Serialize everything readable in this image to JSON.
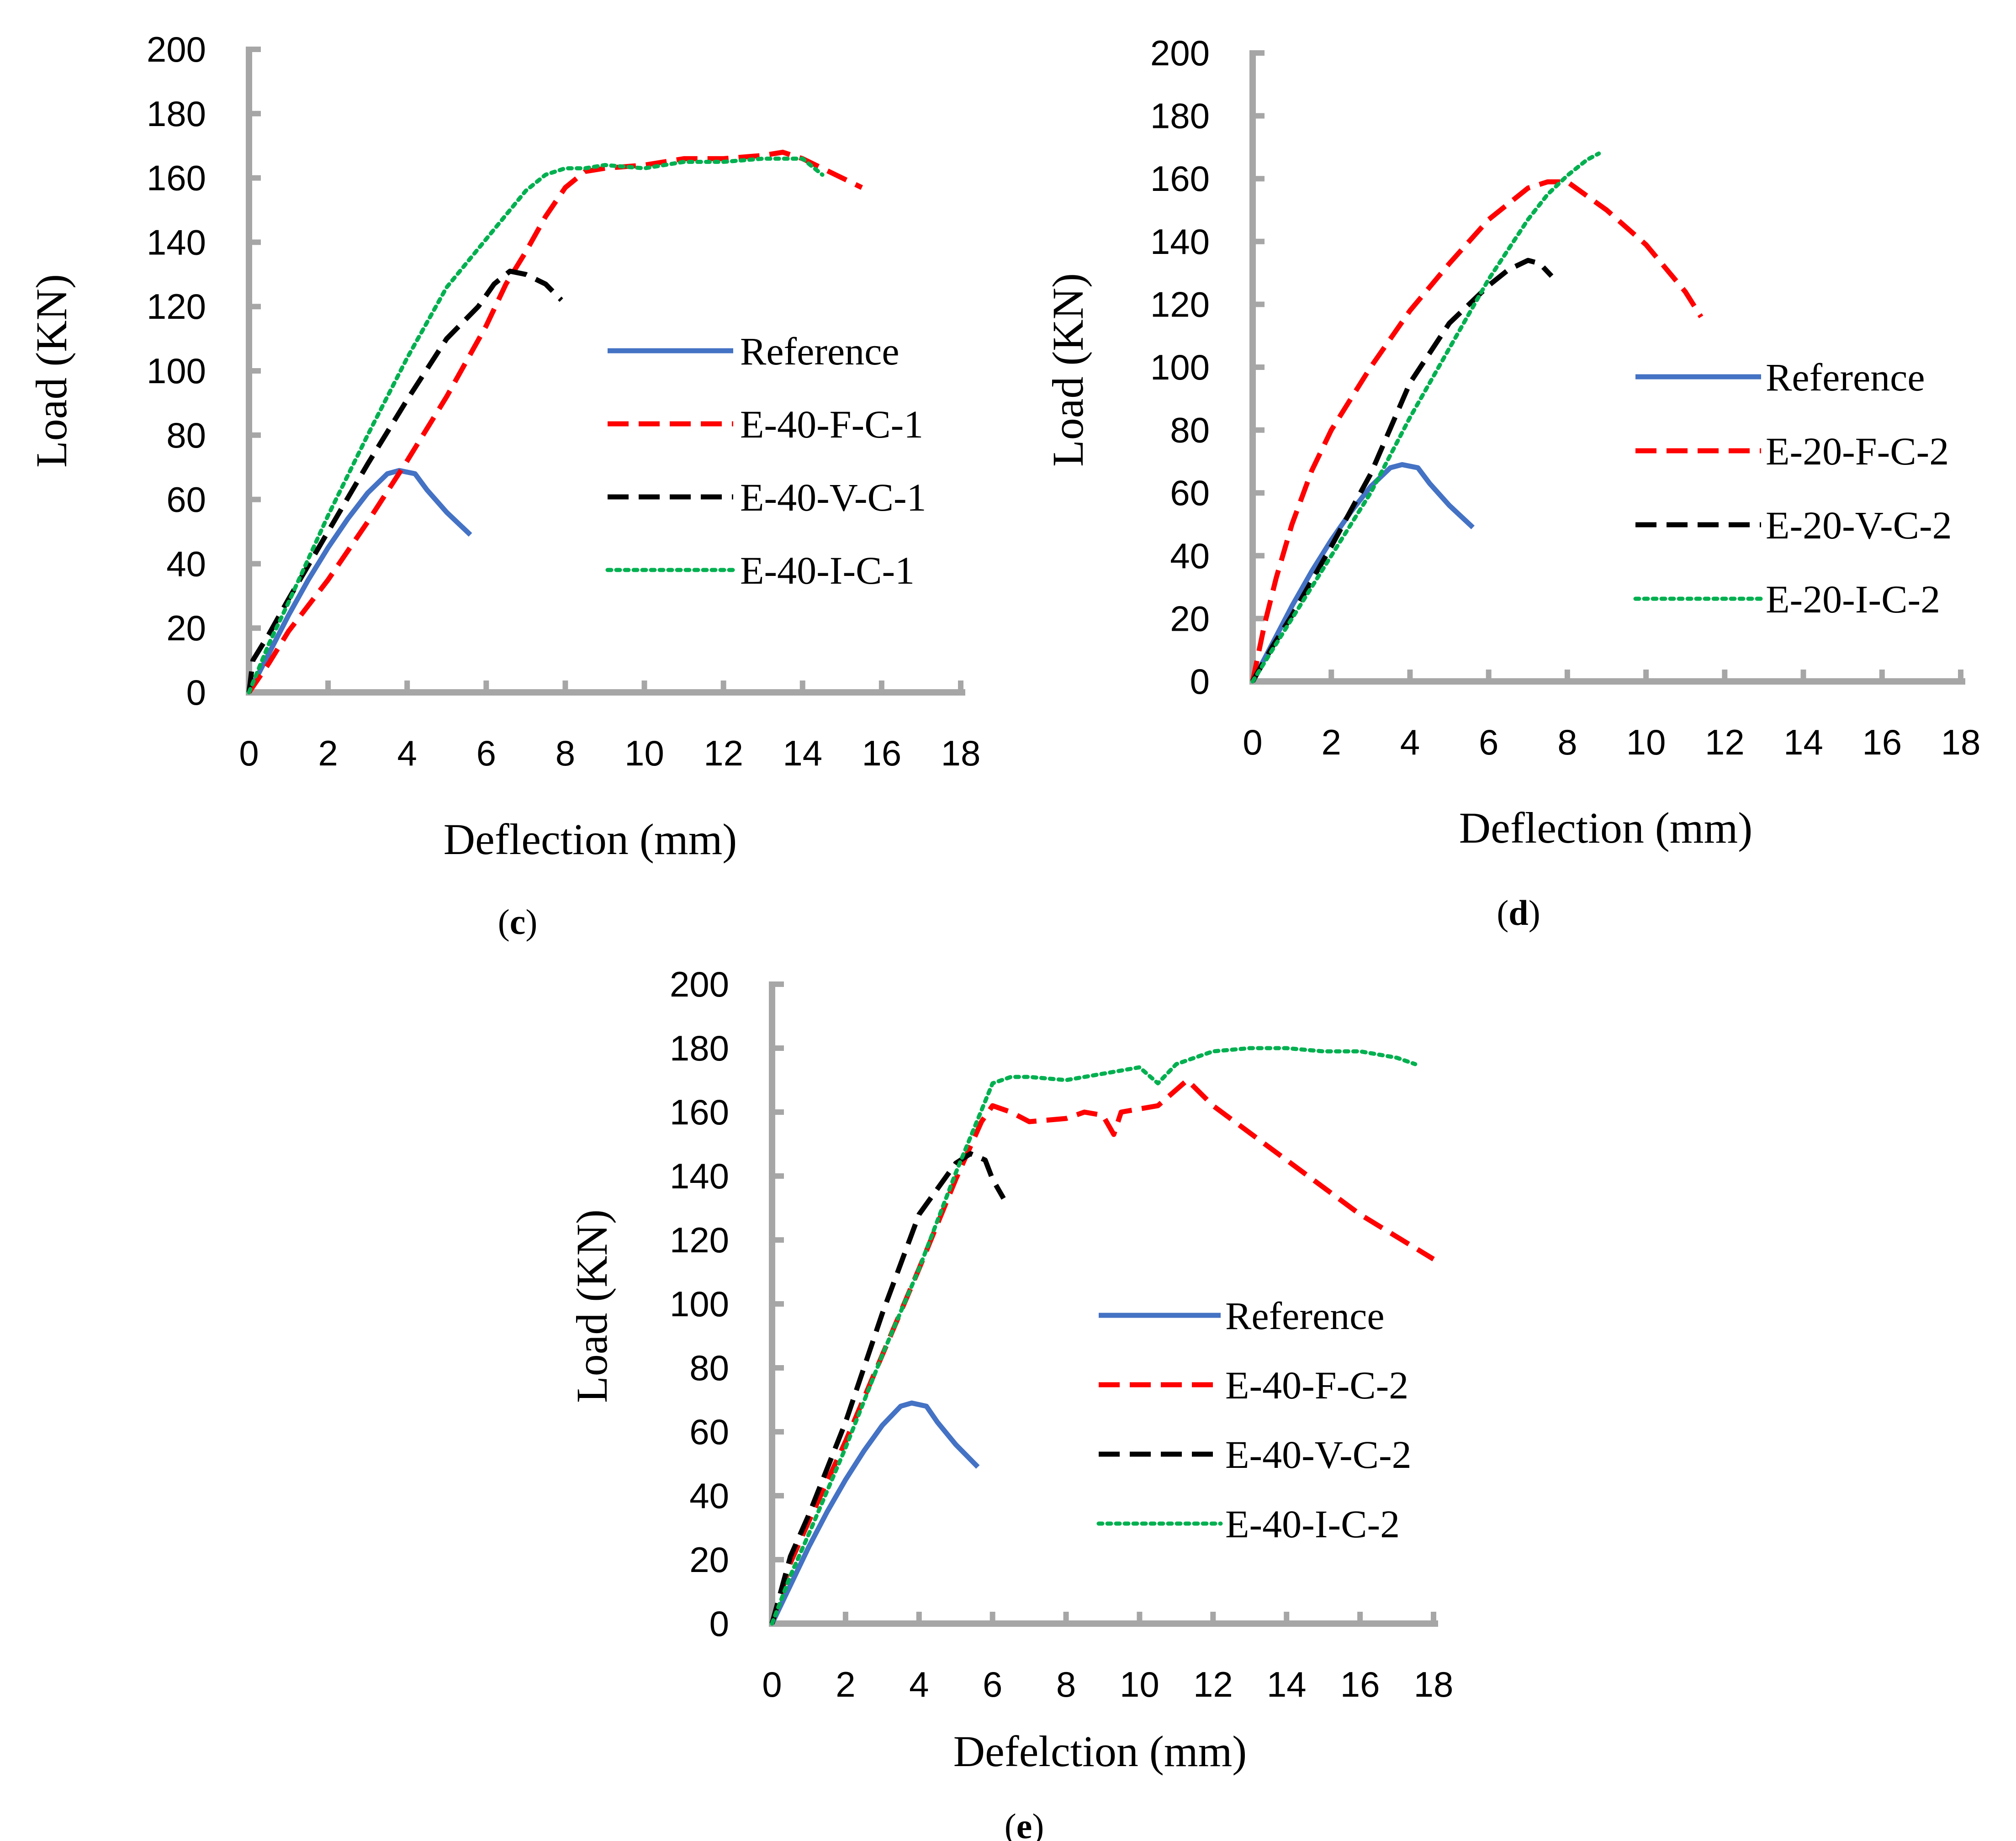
{
  "chart_data": [
    {
      "panel": "c",
      "type": "line",
      "xlabel": "Deflection (mm)",
      "ylabel": "Load (KN)",
      "xlim": [
        0,
        18
      ],
      "ylim": [
        0,
        200
      ],
      "xticks": [
        "0",
        "2",
        "4",
        "6",
        "8",
        "10",
        "12",
        "14",
        "16",
        "18"
      ],
      "yticks": [
        "0",
        "20",
        "40",
        "60",
        "80",
        "100",
        "120",
        "140",
        "160",
        "180",
        "200"
      ],
      "grid": false,
      "legend_position": "right",
      "series": [
        {
          "name": "Reference",
          "color": "#4472C4",
          "style": "solid",
          "x": [
            0,
            0.5,
            1.0,
            1.5,
            2.0,
            2.5,
            3.0,
            3.5,
            3.8,
            4.2,
            4.5,
            5.0,
            5.6
          ],
          "y": [
            0,
            12,
            24,
            35,
            45,
            54,
            62,
            68,
            69,
            68,
            63,
            56,
            49
          ]
        },
        {
          "name": "E-40-F-C-1",
          "color": "#FF0000",
          "style": "dashed",
          "x": [
            0,
            0.5,
            1.0,
            1.5,
            2.0,
            3.0,
            4.0,
            5.0,
            6.0,
            6.5,
            7.0,
            7.5,
            8.0,
            8.5,
            9.0,
            10.0,
            11.0,
            12.0,
            13.0,
            13.5,
            14.0,
            14.5,
            15.0,
            15.5
          ],
          "y": [
            0,
            9,
            19,
            27,
            35,
            53,
            72,
            92,
            114,
            127,
            137,
            148,
            157,
            162,
            163,
            164,
            166,
            166,
            167,
            168,
            166,
            163,
            160,
            157
          ]
        },
        {
          "name": "E-40-V-C-1",
          "color": "#000000",
          "style": "dashed",
          "x": [
            0,
            0.1,
            0.5,
            1.0,
            2.0,
            3.0,
            4.0,
            5.0,
            5.8,
            6.2,
            6.6,
            7.0,
            7.5,
            7.9
          ],
          "y": [
            0,
            10,
            18,
            29,
            50,
            71,
            91,
            110,
            120,
            127,
            131,
            130,
            127,
            122
          ]
        },
        {
          "name": "E-40-I-C-1",
          "color": "#00B050",
          "style": "dotted",
          "x": [
            0,
            0.5,
            1.0,
            2.0,
            3.0,
            4.0,
            5.0,
            6.0,
            7.0,
            7.5,
            8.0,
            8.5,
            9.0,
            10.0,
            11.0,
            12.0,
            13.0,
            14.0,
            14.5
          ],
          "y": [
            0,
            15,
            28,
            55,
            80,
            104,
            126,
            141,
            156,
            161,
            163,
            163,
            164,
            163,
            165,
            165,
            166,
            166,
            161
          ]
        }
      ]
    },
    {
      "panel": "d",
      "type": "line",
      "xlabel": "Deflection (mm)",
      "ylabel": "Load (KN)",
      "xlim": [
        0,
        18
      ],
      "ylim": [
        0,
        200
      ],
      "xticks": [
        "0",
        "2",
        "4",
        "6",
        "8",
        "10",
        "12",
        "14",
        "16",
        "18"
      ],
      "yticks": [
        "0",
        "20",
        "40",
        "60",
        "80",
        "100",
        "120",
        "140",
        "160",
        "180",
        "200"
      ],
      "grid": false,
      "legend_position": "right",
      "series": [
        {
          "name": "Reference",
          "color": "#4472C4",
          "style": "solid",
          "x": [
            0,
            0.5,
            1.0,
            1.5,
            2.0,
            2.5,
            3.0,
            3.5,
            3.8,
            4.2,
            4.5,
            5.0,
            5.6
          ],
          "y": [
            0,
            12,
            24,
            35,
            45,
            54,
            62,
            68,
            69,
            68,
            63,
            56,
            49
          ]
        },
        {
          "name": "E-20-F-C-2",
          "color": "#FF0000",
          "style": "dashed",
          "x": [
            0,
            0.3,
            0.6,
            1.0,
            1.5,
            2.0,
            3.0,
            4.0,
            5.0,
            6.0,
            7.0,
            7.5,
            8.0,
            9.0,
            10.0,
            11.0,
            11.4
          ],
          "y": [
            0,
            18,
            33,
            50,
            67,
            80,
            100,
            118,
            133,
            147,
            157,
            159,
            159,
            150,
            139,
            124,
            116
          ]
        },
        {
          "name": "E-20-V-C-2",
          "color": "#000000",
          "style": "dashed",
          "x": [
            0,
            0.5,
            1.0,
            2.0,
            3.0,
            4.0,
            5.0,
            6.0,
            6.5,
            7.0,
            7.3,
            7.6
          ],
          "y": [
            0,
            11,
            21,
            43,
            66,
            95,
            114,
            126,
            131,
            134,
            133,
            129
          ]
        },
        {
          "name": "E-20-I-C-2",
          "color": "#00B050",
          "style": "dotted",
          "x": [
            0,
            0.5,
            1.0,
            2.0,
            3.0,
            4.0,
            5.0,
            6.0,
            7.0,
            7.5,
            8.0,
            8.5,
            8.8
          ],
          "y": [
            0,
            10,
            20,
            40,
            60,
            84,
            106,
            128,
            147,
            155,
            161,
            166,
            168
          ]
        }
      ]
    },
    {
      "panel": "e",
      "type": "line",
      "xlabel": "Defelction (mm)",
      "ylabel": "Load (KN)",
      "xlim": [
        0,
        18
      ],
      "ylim": [
        0,
        200
      ],
      "xticks": [
        "0",
        "2",
        "4",
        "6",
        "8",
        "10",
        "12",
        "14",
        "16",
        "18"
      ],
      "yticks": [
        "0",
        "20",
        "40",
        "60",
        "80",
        "100",
        "120",
        "140",
        "160",
        "180",
        "200"
      ],
      "grid": false,
      "legend_position": "right",
      "series": [
        {
          "name": "Reference",
          "color": "#4472C4",
          "style": "solid",
          "x": [
            0,
            0.5,
            1.0,
            1.5,
            2.0,
            2.5,
            3.0,
            3.5,
            3.8,
            4.2,
            4.5,
            5.0,
            5.6
          ],
          "y": [
            0,
            12,
            24,
            35,
            45,
            54,
            62,
            68,
            69,
            68,
            63,
            56,
            49
          ]
        },
        {
          "name": "E-40-F-C-2",
          "color": "#FF0000",
          "style": "dashed",
          "x": [
            0,
            0.5,
            1.0,
            2.0,
            3.0,
            4.0,
            5.0,
            5.7,
            6.0,
            6.5,
            7.0,
            8.0,
            8.5,
            9.0,
            9.3,
            9.5,
            10.0,
            10.5,
            11.0,
            11.3,
            12.0,
            14.0,
            16.0,
            18.0
          ],
          "y": [
            0,
            19,
            32,
            57,
            84,
            111,
            139,
            157,
            162,
            160,
            157,
            158,
            160,
            159,
            153,
            160,
            161,
            162,
            167,
            170,
            162,
            145,
            128,
            114
          ]
        },
        {
          "name": "E-40-V-C-2",
          "color": "#000000",
          "style": "dashed",
          "x": [
            0,
            0.5,
            1.0,
            2.0,
            3.0,
            4.0,
            5.0,
            5.4,
            5.8,
            6.0,
            6.3
          ],
          "y": [
            0,
            21,
            34,
            63,
            97,
            128,
            144,
            147,
            145,
            139,
            133
          ]
        },
        {
          "name": "E-40-I-C-2",
          "color": "#00B050",
          "style": "dotted",
          "x": [
            0,
            0.5,
            1.0,
            2.0,
            3.0,
            4.0,
            5.0,
            6.0,
            6.5,
            7.0,
            8.0,
            9.0,
            10.0,
            10.5,
            11.0,
            12.0,
            13.0,
            14.0,
            15.0,
            16.0,
            17.0,
            17.5
          ],
          "y": [
            0,
            15,
            28,
            55,
            84,
            111,
            141,
            169,
            171,
            171,
            170,
            172,
            174,
            169,
            175,
            179,
            180,
            180,
            179,
            179,
            177,
            175
          ]
        }
      ]
    }
  ],
  "panel_labels": {
    "c": {
      "open": "(",
      "letter": "c",
      "close": ")"
    },
    "d": {
      "open": "(",
      "letter": "d",
      "close": ")"
    },
    "e": {
      "open": "(",
      "letter": "e",
      "close": ")"
    }
  }
}
